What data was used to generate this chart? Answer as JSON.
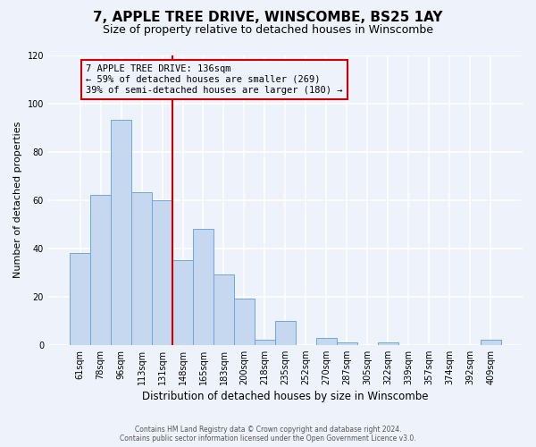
{
  "title": "7, APPLE TREE DRIVE, WINSCOMBE, BS25 1AY",
  "subtitle": "Size of property relative to detached houses in Winscombe",
  "xlabel": "Distribution of detached houses by size in Winscombe",
  "ylabel": "Number of detached properties",
  "bar_labels": [
    "61sqm",
    "78sqm",
    "96sqm",
    "113sqm",
    "131sqm",
    "148sqm",
    "165sqm",
    "183sqm",
    "200sqm",
    "218sqm",
    "235sqm",
    "252sqm",
    "270sqm",
    "287sqm",
    "305sqm",
    "322sqm",
    "339sqm",
    "357sqm",
    "374sqm",
    "392sqm",
    "409sqm"
  ],
  "bar_values": [
    38,
    62,
    93,
    63,
    60,
    35,
    48,
    29,
    19,
    2,
    10,
    0,
    3,
    1,
    0,
    1,
    0,
    0,
    0,
    0,
    2
  ],
  "bar_color": "#c5d8f0",
  "bar_edge_color": "#6ea8d8",
  "ylim": [
    0,
    120
  ],
  "yticks": [
    0,
    20,
    40,
    60,
    80,
    100,
    120
  ],
  "vline_color": "#cc0000",
  "annotation_title": "7 APPLE TREE DRIVE: 136sqm",
  "annotation_line1": "← 59% of detached houses are smaller (269)",
  "annotation_line2": "39% of semi-detached houses are larger (180) →",
  "annotation_box_color": "#cc0000",
  "footer_line1": "Contains HM Land Registry data © Crown copyright and database right 2024.",
  "footer_line2": "Contains public sector information licensed under the Open Government Licence v3.0.",
  "background_color": "#eef2fb",
  "grid_color": "#ffffff",
  "title_fontsize": 11,
  "subtitle_fontsize": 9
}
